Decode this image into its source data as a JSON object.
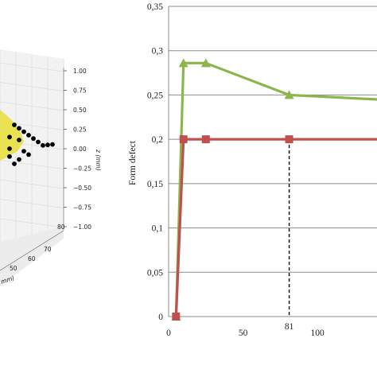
{
  "chart_data": [
    {
      "type": "scatter",
      "projection": "3d",
      "title": "",
      "zlabel": "z (mm)",
      "xlabel_partial": "mm)",
      "z_ticks": [
        "1.00",
        "0.75",
        "0.50",
        "0.25",
        "0.00",
        "−0.25",
        "−0.50",
        "−0.75",
        "−1.00"
      ],
      "x_ticks": [
        "80",
        "70",
        "60",
        "50"
      ],
      "zlim": [
        -1,
        1
      ],
      "xlim": [
        50,
        80
      ],
      "grid": true,
      "point_color": "#000000",
      "surface_color": "#e8e040",
      "points": [
        {
          "x": 58,
          "z": 0.0
        },
        {
          "x": 60,
          "z": 0.25
        },
        {
          "x": 61,
          "z": 0.2
        },
        {
          "x": 62,
          "z": 0.15
        },
        {
          "x": 63,
          "z": 0.1
        },
        {
          "x": 64,
          "z": 0.05
        },
        {
          "x": 65,
          "z": 0.0
        },
        {
          "x": 66,
          "z": 0.0
        },
        {
          "x": 67,
          "z": 0.0
        },
        {
          "x": 59,
          "z": 0.3
        },
        {
          "x": 60,
          "z": 0.1
        },
        {
          "x": 61,
          "z": -0.05
        },
        {
          "x": 62,
          "z": -0.1
        },
        {
          "x": 58,
          "z": -0.1
        },
        {
          "x": 59,
          "z": -0.2
        },
        {
          "x": 60,
          "z": -0.15
        },
        {
          "x": 58,
          "z": 0.15
        }
      ]
    },
    {
      "type": "line",
      "title": "",
      "ylabel": "Form defect",
      "xlabel": "",
      "xlim": [
        0,
        140
      ],
      "ylim": [
        0,
        0.35
      ],
      "x_ticks": [
        0,
        50,
        100
      ],
      "x_tick_labels": [
        "0",
        "50",
        "100"
      ],
      "y_ticks": [
        0,
        0.05,
        0.1,
        0.15,
        0.2,
        0.25,
        0.3,
        0.35
      ],
      "y_tick_labels": [
        "0",
        "0,05",
        "0,1",
        "0,15",
        "0,2",
        "0,25",
        "0,3",
        "0,35"
      ],
      "grid": "horizontal",
      "annotation": {
        "x": 81,
        "label": "81",
        "style": "dashed vertical line"
      },
      "series": [
        {
          "color": "#8db64a",
          "marker": "triangle",
          "x": [
            5,
            10,
            25,
            81,
            140
          ],
          "y": [
            0,
            0.286,
            0.286,
            0.25,
            0.245
          ]
        },
        {
          "color": "#c0504d",
          "marker": "square",
          "x": [
            5,
            10,
            25,
            81,
            140
          ],
          "y": [
            0,
            0.2,
            0.2,
            0.2,
            0.2
          ]
        }
      ]
    }
  ]
}
